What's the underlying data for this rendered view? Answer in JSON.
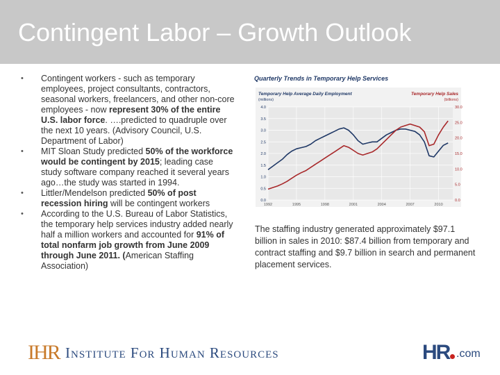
{
  "slide": {
    "title": "Contingent Labor – Growth Outlook"
  },
  "bullets": [
    {
      "parts": [
        {
          "t": "Contingent workers - such as temporary employees, project consultants, contractors, seasonal workers, freelancers, and other non-core employees - now ",
          "b": false
        },
        {
          "t": "represent 30% of the entire U.S. labor force",
          "b": true
        },
        {
          "t": ". ….predicted to quadruple over the next 10 years. (Advisory Council, U.S. Department of Labor)",
          "b": false
        }
      ]
    },
    {
      "parts": [
        {
          "t": "MIT Sloan Study predicted ",
          "b": false
        },
        {
          "t": "50% of the workforce would be contingent by 2015",
          "b": true
        },
        {
          "t": "; leading case study software company reached it several years ago…the study was started in 1994.",
          "b": false
        }
      ]
    },
    {
      "parts": [
        {
          "t": "Littler/Mendelson predicted ",
          "b": false
        },
        {
          "t": "50% of post recession hiring",
          "b": true
        },
        {
          "t": " will be contingent workers",
          "b": false
        }
      ]
    },
    {
      "parts": [
        {
          "t": "According to the U.S. Bureau of Labor Statistics, the temporary help services industry added nearly half a million workers and accounted for ",
          "b": false
        },
        {
          "t": "91% of total nonfarm job growth from June 2009 through June 2011. (",
          "b": true
        },
        {
          "t": "American Staffing Association)",
          "b": false
        }
      ]
    }
  ],
  "caption": "The staffing industry generated approximately $97.1 billion in sales in 2010: $87.4 billion from temporary and contract staffing and $9.7 billion in search and permanent placement services.",
  "logos": {
    "left_mark": "IHR",
    "left_text": "Institute For Human Resources",
    "right_mark": "HR",
    "right_suffix": ".com"
  },
  "chart_data": {
    "type": "line",
    "title": "Quarterly Trends in Temporary Help Services",
    "left_axis_title": "Temporary Help Average Daily Employment",
    "left_axis_unit": "(millions)",
    "right_axis_title": "Temporary Help Sales",
    "right_axis_unit": "(billions)",
    "x_ticks": [
      "1992",
      "1995",
      "1998",
      "2001",
      "2004",
      "2007",
      "2010"
    ],
    "left_ticks": [
      "0.0",
      "0.5",
      "1.0",
      "1.5",
      "2.0",
      "2.5",
      "3.0",
      "3.5",
      "4.0"
    ],
    "right_ticks": [
      "0.0",
      "5.0",
      "10.0",
      "15.0",
      "20.0",
      "25.0",
      "30.0"
    ],
    "xlim": [
      1992,
      2011.5
    ],
    "ylim_left": [
      0,
      4
    ],
    "ylim_right": [
      0,
      30
    ],
    "grid": true,
    "colors": {
      "employment": "#1f3866",
      "sales": "#a8282a",
      "header_left": "#1f3866",
      "header_right": "#a8282a",
      "plot_bg": "#e8e8e8"
    },
    "series": [
      {
        "name": "Temporary Help Average Daily Employment",
        "axis": "left",
        "x": [
          1992,
          1992.5,
          1993,
          1993.5,
          1994,
          1994.5,
          1995,
          1995.5,
          1996,
          1996.5,
          1997,
          1997.5,
          1998,
          1998.5,
          1999,
          1999.5,
          2000,
          2000.5,
          2001,
          2001.5,
          2002,
          2002.5,
          2003,
          2003.5,
          2004,
          2004.5,
          2005,
          2005.5,
          2006,
          2006.5,
          2007,
          2007.5,
          2008,
          2008.5,
          2009,
          2009.5,
          2010,
          2010.5,
          2011
        ],
        "y": [
          1.3,
          1.45,
          1.6,
          1.75,
          1.95,
          2.1,
          2.2,
          2.25,
          2.3,
          2.4,
          2.55,
          2.65,
          2.75,
          2.85,
          2.95,
          3.05,
          3.1,
          3.0,
          2.8,
          2.55,
          2.4,
          2.45,
          2.5,
          2.5,
          2.65,
          2.8,
          2.9,
          3.0,
          3.05,
          3.05,
          3.0,
          2.95,
          2.8,
          2.5,
          1.9,
          1.85,
          2.1,
          2.35,
          2.45
        ]
      },
      {
        "name": "Temporary Help Sales",
        "axis": "right",
        "x": [
          1992,
          1992.5,
          1993,
          1993.5,
          1994,
          1994.5,
          1995,
          1995.5,
          1996,
          1996.5,
          1997,
          1997.5,
          1998,
          1998.5,
          1999,
          1999.5,
          2000,
          2000.5,
          2001,
          2001.5,
          2002,
          2002.5,
          2003,
          2003.5,
          2004,
          2004.5,
          2005,
          2005.5,
          2006,
          2006.5,
          2007,
          2007.5,
          2008,
          2008.5,
          2009,
          2009.5,
          2010,
          2010.5,
          2011
        ],
        "y": [
          3.5,
          4.0,
          4.5,
          5.2,
          6.0,
          7.0,
          8.0,
          8.8,
          9.5,
          10.5,
          11.5,
          12.5,
          13.5,
          14.5,
          15.5,
          16.5,
          17.5,
          17.0,
          16.0,
          15.0,
          14.5,
          15.0,
          15.5,
          16.5,
          18.0,
          19.5,
          21.0,
          22.5,
          23.5,
          24.0,
          24.5,
          24.0,
          23.5,
          22.0,
          17.5,
          18.0,
          21.0,
          23.5,
          25.5
        ]
      }
    ]
  }
}
